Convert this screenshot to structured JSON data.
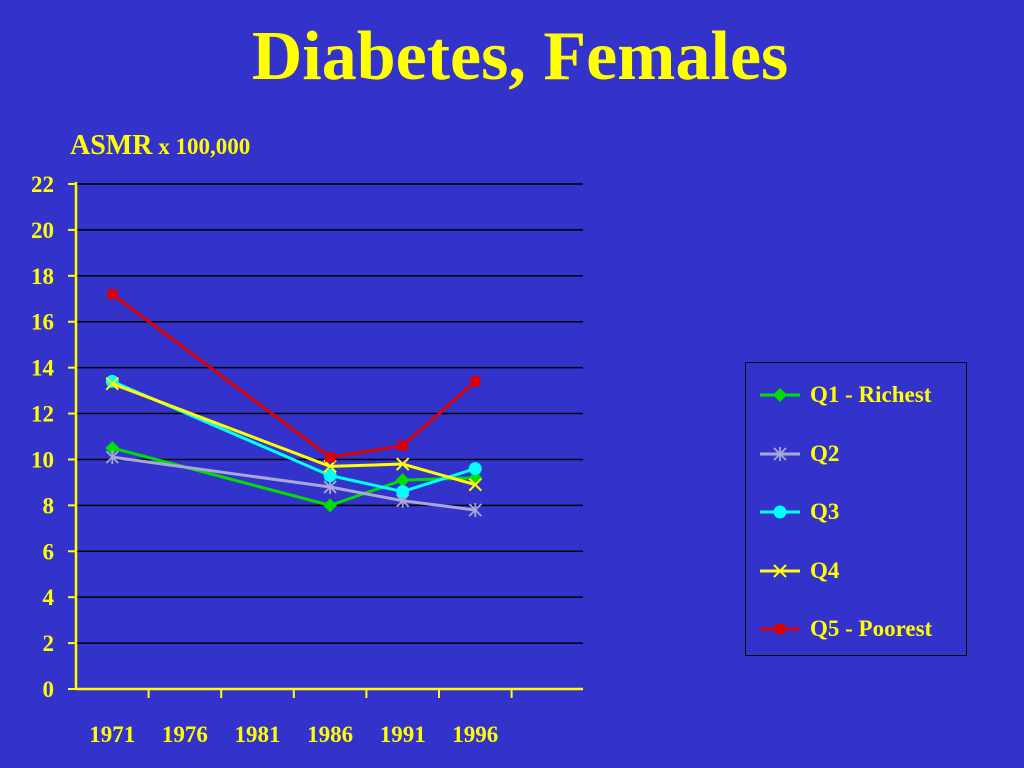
{
  "title": "Diabetes, Females",
  "axis_label": {
    "main": "ASMR",
    "unit": " x 100,000"
  },
  "chart_data": {
    "type": "line",
    "title": "Diabetes, Females",
    "ylabel": "ASMR x 100,000",
    "xlabel": "",
    "x": [
      1971,
      1976,
      1981,
      1986,
      1991,
      1996
    ],
    "x_tick_labels": [
      "1971",
      "1976",
      "1981",
      "1986",
      "1991",
      "1996"
    ],
    "ylim": [
      0,
      22
    ],
    "y_ticks": [
      0,
      2,
      4,
      6,
      8,
      10,
      12,
      14,
      16,
      18,
      20,
      22
    ],
    "grid": true,
    "legend_position": "right",
    "series": [
      {
        "name": "Q1 - Richest",
        "color": "#00dd00",
        "marker": "diamond",
        "points": [
          [
            1971,
            10.5
          ],
          [
            1986,
            8.0
          ],
          [
            1991,
            9.1
          ],
          [
            1996,
            9.2
          ]
        ]
      },
      {
        "name": "Q2",
        "color": "#a8a8d8",
        "marker": "asterisk",
        "points": [
          [
            1971,
            10.1
          ],
          [
            1986,
            8.8
          ],
          [
            1991,
            8.2
          ],
          [
            1996,
            7.8
          ]
        ]
      },
      {
        "name": "Q3",
        "color": "#00ffff",
        "marker": "circle",
        "points": [
          [
            1971,
            13.4
          ],
          [
            1986,
            9.3
          ],
          [
            1991,
            8.6
          ],
          [
            1996,
            9.6
          ]
        ]
      },
      {
        "name": "Q4",
        "color": "#ffff00",
        "marker": "x",
        "points": [
          [
            1971,
            13.3
          ],
          [
            1986,
            9.7
          ],
          [
            1991,
            9.8
          ],
          [
            1996,
            8.9
          ]
        ]
      },
      {
        "name": "Q5 - Poorest",
        "color": "#dd0000",
        "marker": "square",
        "points": [
          [
            1971,
            17.2
          ],
          [
            1986,
            10.1
          ],
          [
            1991,
            10.6
          ],
          [
            1996,
            13.4
          ]
        ]
      }
    ]
  }
}
